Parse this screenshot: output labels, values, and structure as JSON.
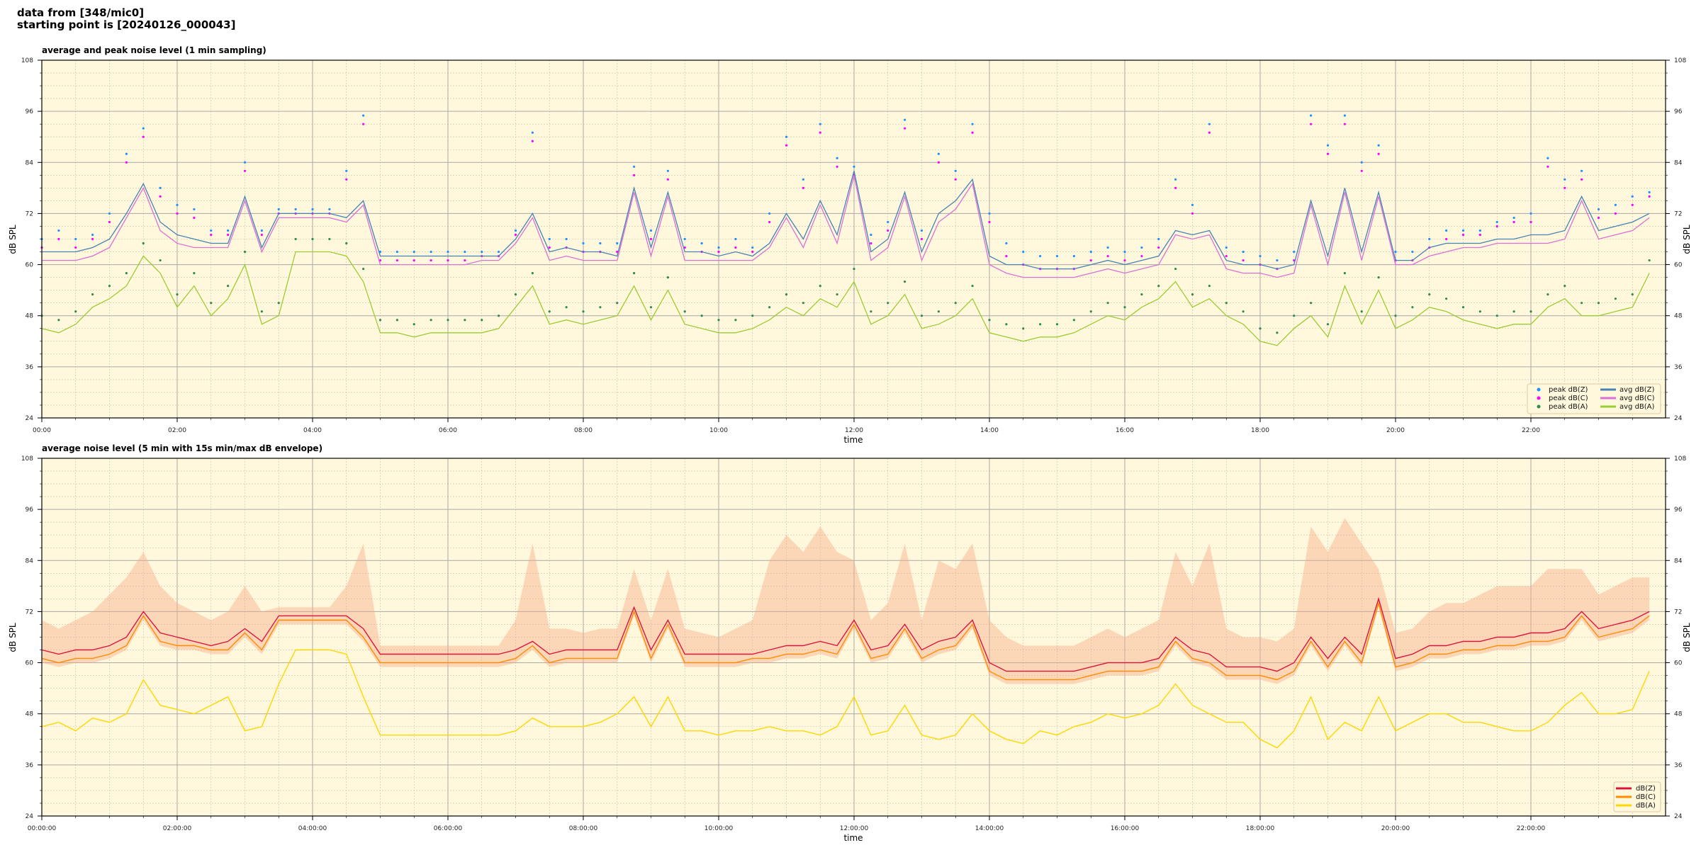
{
  "header": {
    "line1": "data from [348/mic0]",
    "line2": "starting point is [20240126_000043]"
  },
  "colors": {
    "background": "#fff8dc",
    "peakZ": "#1e90ff",
    "peakC": "#ff00ff",
    "peakA": "#2e8b57",
    "avgZ": "#4682b4",
    "avgC": "#da70d6",
    "avgA": "#9acd32",
    "dbZ": "#dc143c",
    "dbC": "#ff8c00",
    "dbA": "#ffd700",
    "envelope": "#f4a582"
  },
  "chart_data": [
    {
      "type": "line",
      "title": "average and peak noise level (1 min sampling)",
      "xlabel": "time",
      "ylabel": "dB SPL",
      "ylim": [
        24,
        108
      ],
      "yticks": [
        "108",
        "96",
        "84",
        "72",
        "60",
        "48",
        "36",
        "24"
      ],
      "xticks": [
        "00:00",
        "02:00",
        "04:00",
        "06:00",
        "08:00",
        "10:00",
        "12:00",
        "14:00",
        "16:00",
        "18:00",
        "20:00",
        "22:00"
      ],
      "x_interval_minutes": 15,
      "grid": true,
      "legend_placement": "lower-right",
      "legend": [
        "peak dB(Z)",
        "peak dB(C)",
        "peak dB(A)",
        "avg dB(Z)",
        "avg dB(C)",
        "avg dB(A)"
      ],
      "series": [
        {
          "name": "avg dB(Z)",
          "kind": "line",
          "values": [
            63,
            63,
            63,
            64,
            66,
            72,
            79,
            70,
            67,
            66,
            65,
            65,
            76,
            64,
            72,
            72,
            72,
            72,
            71,
            75,
            62,
            62,
            62,
            62,
            62,
            62,
            62,
            62,
            66,
            72,
            63,
            64,
            63,
            63,
            62,
            78,
            64,
            77,
            63,
            63,
            62,
            63,
            62,
            65,
            72,
            66,
            75,
            67,
            82,
            63,
            66,
            77,
            63,
            72,
            75,
            80,
            62,
            60,
            60,
            59,
            59,
            59,
            60,
            61,
            60,
            61,
            62,
            68,
            67,
            68,
            61,
            60,
            60,
            59,
            60,
            75,
            62,
            78,
            63,
            77,
            61,
            61,
            64,
            65,
            65,
            65,
            66,
            66,
            67,
            67,
            68,
            76,
            68,
            69,
            70,
            72
          ]
        },
        {
          "name": "avg dB(C)",
          "kind": "line",
          "values": [
            61,
            61,
            61,
            62,
            64,
            71,
            78,
            68,
            65,
            64,
            64,
            64,
            75,
            63,
            71,
            71,
            71,
            71,
            70,
            74,
            60,
            60,
            60,
            60,
            60,
            60,
            61,
            61,
            65,
            71,
            61,
            62,
            61,
            61,
            61,
            77,
            62,
            76,
            61,
            61,
            61,
            61,
            61,
            64,
            71,
            64,
            74,
            65,
            81,
            61,
            64,
            76,
            61,
            70,
            73,
            79,
            60,
            58,
            57,
            57,
            57,
            57,
            58,
            59,
            58,
            59,
            60,
            67,
            66,
            67,
            59,
            58,
            58,
            57,
            58,
            74,
            60,
            77,
            61,
            76,
            60,
            60,
            62,
            63,
            64,
            64,
            65,
            65,
            65,
            65,
            66,
            75,
            66,
            67,
            68,
            71
          ]
        },
        {
          "name": "avg dB(A)",
          "kind": "line",
          "values": [
            45,
            44,
            46,
            50,
            52,
            55,
            62,
            58,
            50,
            55,
            48,
            52,
            60,
            46,
            48,
            63,
            63,
            63,
            62,
            56,
            44,
            44,
            43,
            44,
            44,
            44,
            44,
            45,
            50,
            55,
            46,
            47,
            46,
            47,
            48,
            55,
            47,
            54,
            46,
            45,
            44,
            44,
            45,
            47,
            50,
            48,
            52,
            50,
            56,
            46,
            48,
            53,
            45,
            46,
            48,
            52,
            44,
            43,
            42,
            43,
            43,
            44,
            46,
            48,
            47,
            50,
            52,
            56,
            50,
            52,
            48,
            46,
            42,
            41,
            45,
            48,
            43,
            55,
            46,
            54,
            45,
            47,
            50,
            49,
            47,
            46,
            45,
            46,
            46,
            50,
            52,
            48,
            48,
            49,
            50,
            58
          ]
        },
        {
          "name": "peak dB(Z)",
          "kind": "scatter",
          "values": [
            66,
            68,
            66,
            67,
            72,
            86,
            92,
            78,
            74,
            73,
            68,
            68,
            84,
            68,
            73,
            73,
            73,
            73,
            82,
            95,
            63,
            63,
            63,
            63,
            63,
            63,
            63,
            63,
            68,
            91,
            66,
            66,
            65,
            65,
            65,
            83,
            68,
            82,
            66,
            65,
            64,
            66,
            64,
            72,
            90,
            80,
            93,
            85,
            83,
            67,
            70,
            94,
            68,
            86,
            82,
            93,
            72,
            65,
            63,
            62,
            62,
            62,
            63,
            64,
            63,
            64,
            66,
            80,
            74,
            93,
            64,
            63,
            62,
            61,
            63,
            95,
            88,
            95,
            84,
            88,
            63,
            63,
            66,
            68,
            68,
            68,
            70,
            71,
            72,
            85,
            80,
            82,
            73,
            74,
            76,
            77
          ]
        },
        {
          "name": "peak dB(C)",
          "kind": "scatter",
          "values": [
            64,
            66,
            64,
            66,
            70,
            84,
            90,
            76,
            72,
            71,
            67,
            67,
            82,
            67,
            72,
            72,
            72,
            72,
            80,
            93,
            61,
            61,
            61,
            61,
            61,
            61,
            62,
            62,
            67,
            89,
            64,
            64,
            63,
            63,
            63,
            81,
            66,
            80,
            64,
            63,
            63,
            64,
            63,
            70,
            88,
            78,
            91,
            83,
            81,
            65,
            68,
            92,
            66,
            84,
            80,
            91,
            70,
            62,
            60,
            59,
            59,
            59,
            61,
            62,
            61,
            62,
            64,
            78,
            72,
            91,
            62,
            61,
            60,
            59,
            61,
            93,
            86,
            93,
            82,
            86,
            61,
            61,
            64,
            66,
            67,
            67,
            69,
            70,
            70,
            83,
            78,
            80,
            71,
            72,
            74,
            76
          ]
        },
        {
          "name": "peak dB(A)",
          "kind": "scatter",
          "values": [
            48,
            47,
            49,
            53,
            55,
            58,
            65,
            61,
            53,
            58,
            51,
            55,
            63,
            49,
            51,
            66,
            66,
            66,
            65,
            59,
            47,
            47,
            46,
            47,
            47,
            47,
            47,
            48,
            53,
            58,
            49,
            50,
            49,
            50,
            51,
            58,
            50,
            57,
            49,
            48,
            47,
            47,
            48,
            50,
            53,
            51,
            55,
            53,
            59,
            49,
            51,
            56,
            48,
            49,
            51,
            55,
            47,
            46,
            45,
            46,
            46,
            47,
            49,
            51,
            50,
            53,
            55,
            59,
            53,
            55,
            51,
            49,
            45,
            44,
            48,
            51,
            46,
            58,
            49,
            57,
            48,
            50,
            53,
            52,
            50,
            49,
            48,
            49,
            49,
            53,
            55,
            51,
            51,
            52,
            53,
            61
          ]
        }
      ]
    },
    {
      "type": "line",
      "title": "average noise level (5 min with 15s min/max dB envelope)",
      "xlabel": "time",
      "ylabel": "dB SPL",
      "ylim": [
        24,
        108
      ],
      "yticks": [
        "108",
        "96",
        "84",
        "72",
        "60",
        "48",
        "36",
        "24"
      ],
      "xticks": [
        "00:00:00",
        "02:00:00",
        "04:00:00",
        "06:00:00",
        "08:00:00",
        "10:00:00",
        "12:00:00",
        "14:00:00",
        "16:00:00",
        "18:00:00",
        "20:00:00",
        "22:00:00"
      ],
      "x_interval_minutes": 15,
      "grid": true,
      "legend_placement": "lower-right",
      "legend": [
        "dB(Z)",
        "dB(C)",
        "dB(A)"
      ],
      "series": [
        {
          "name": "dB(Z)",
          "values": [
            63,
            62,
            63,
            63,
            64,
            66,
            72,
            67,
            66,
            65,
            64,
            65,
            68,
            65,
            71,
            71,
            71,
            71,
            71,
            68,
            62,
            62,
            62,
            62,
            62,
            62,
            62,
            62,
            63,
            65,
            62,
            63,
            63,
            63,
            63,
            73,
            63,
            70,
            62,
            62,
            62,
            62,
            62,
            63,
            64,
            64,
            65,
            64,
            70,
            63,
            64,
            69,
            63,
            65,
            66,
            70,
            60,
            58,
            58,
            58,
            58,
            58,
            59,
            60,
            60,
            60,
            61,
            66,
            63,
            62,
            59,
            59,
            59,
            58,
            60,
            66,
            61,
            66,
            62,
            75,
            61,
            62,
            64,
            64,
            65,
            65,
            66,
            66,
            67,
            67,
            68,
            72,
            68,
            69,
            70,
            72
          ]
        },
        {
          "name": "dB(C)",
          "values": [
            61,
            60,
            61,
            61,
            62,
            64,
            71,
            65,
            64,
            64,
            63,
            63,
            67,
            63,
            70,
            70,
            70,
            70,
            70,
            66,
            60,
            60,
            60,
            60,
            60,
            60,
            60,
            60,
            61,
            64,
            60,
            61,
            61,
            61,
            61,
            72,
            61,
            69,
            60,
            60,
            60,
            60,
            61,
            61,
            62,
            62,
            63,
            62,
            69,
            61,
            62,
            68,
            61,
            63,
            64,
            69,
            58,
            56,
            56,
            56,
            56,
            56,
            57,
            58,
            58,
            58,
            59,
            65,
            61,
            60,
            57,
            57,
            57,
            56,
            58,
            65,
            59,
            65,
            60,
            74,
            59,
            60,
            62,
            62,
            63,
            63,
            64,
            64,
            65,
            65,
            66,
            71,
            66,
            67,
            68,
            71
          ]
        },
        {
          "name": "dB(A)",
          "values": [
            45,
            46,
            44,
            47,
            46,
            48,
            56,
            50,
            49,
            48,
            50,
            52,
            44,
            45,
            55,
            63,
            63,
            63,
            62,
            52,
            43,
            43,
            43,
            43,
            43,
            43,
            43,
            43,
            44,
            47,
            45,
            45,
            45,
            46,
            48,
            52,
            45,
            52,
            44,
            44,
            43,
            44,
            44,
            45,
            44,
            44,
            43,
            45,
            52,
            43,
            44,
            50,
            43,
            42,
            43,
            48,
            44,
            42,
            41,
            44,
            43,
            45,
            46,
            48,
            47,
            48,
            50,
            55,
            50,
            48,
            46,
            46,
            42,
            40,
            44,
            52,
            42,
            46,
            44,
            52,
            44,
            46,
            48,
            48,
            46,
            46,
            45,
            44,
            44,
            46,
            50,
            53,
            48,
            48,
            49,
            58
          ]
        },
        {
          "name": "envelope max",
          "values": [
            70,
            68,
            70,
            72,
            76,
            80,
            86,
            78,
            74,
            72,
            70,
            72,
            78,
            72,
            73,
            73,
            73,
            73,
            78,
            88,
            64,
            64,
            64,
            64,
            64,
            64,
            64,
            64,
            70,
            88,
            68,
            68,
            67,
            68,
            68,
            82,
            70,
            82,
            68,
            67,
            66,
            68,
            70,
            84,
            90,
            86,
            92,
            86,
            84,
            70,
            74,
            88,
            70,
            84,
            82,
            88,
            70,
            66,
            64,
            64,
            64,
            64,
            66,
            68,
            66,
            68,
            70,
            86,
            78,
            88,
            68,
            66,
            66,
            65,
            68,
            92,
            86,
            94,
            88,
            82,
            67,
            68,
            72,
            74,
            74,
            76,
            78,
            78,
            78,
            82,
            82,
            82,
            76,
            78,
            80,
            80
          ]
        }
      ]
    }
  ]
}
